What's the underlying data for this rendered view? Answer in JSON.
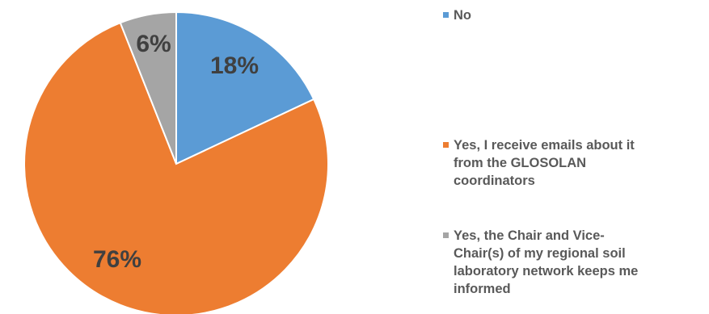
{
  "chart_data": {
    "type": "pie",
    "slices": [
      {
        "label": "No",
        "value": 18,
        "display": "18%",
        "color": "#5B9BD5"
      },
      {
        "label": "Yes, I receive emails about it from the GLOSOLAN coordinators",
        "value": 76,
        "display": "76%",
        "color": "#ED7D31"
      },
      {
        "label": "Yes, the Chair and Vice-Chair(s) of my regional soil laboratory network keeps me informed",
        "value": 6,
        "display": "6%",
        "color": "#A5A5A5"
      }
    ],
    "start_angle_deg": 0,
    "direction": "clockwise",
    "legend_position": "right"
  },
  "legend": {
    "items": [
      {
        "lines": [
          "No"
        ],
        "color": "#5B9BD5"
      },
      {
        "lines": [
          "Yes, I receive emails about it",
          "from the GLOSOLAN",
          "coordinators"
        ],
        "color": "#ED7D31"
      },
      {
        "lines": [
          "Yes, the Chair and Vice-",
          "Chair(s) of my regional soil",
          "laboratory network keeps me",
          "informed"
        ],
        "color": "#A5A5A5"
      }
    ]
  }
}
